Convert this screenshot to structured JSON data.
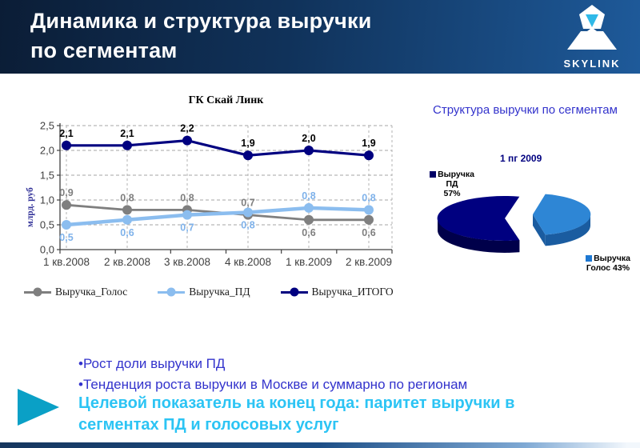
{
  "header": {
    "title_lines": [
      "Динамика и структура выручки",
      "по сегментам"
    ],
    "logo_text": "SKYLINK"
  },
  "chart_data": [
    {
      "type": "line",
      "title": "ГК Скай Линк",
      "ylabel": "млрд. руб",
      "ylim": [
        0,
        2.5
      ],
      "yticks": [
        "0,0",
        "0,5",
        "1,0",
        "1,5",
        "2,0",
        "2,5"
      ],
      "grid": true,
      "legend_position": "bottom",
      "categories": [
        "1 кв.2008",
        "2 кв.2008",
        "3 кв.2008",
        "4 кв.2008",
        "1 кв.2009",
        "2 кв.2009"
      ],
      "series": [
        {
          "name": "Выручка_Голос",
          "color": "#7F7F7F",
          "values": [
            0.9,
            0.8,
            0.8,
            0.7,
            0.6,
            0.6
          ],
          "labels": [
            "0,9",
            "0,8",
            "0,8",
            "0,7",
            "0,6",
            "0,6"
          ],
          "label_side": [
            "above",
            "above",
            "above",
            "above",
            "below",
            "below"
          ]
        },
        {
          "name": "Выручка_ПД",
          "color": "#8BBDEF",
          "label_color": "#7FB2EA",
          "values": [
            0.5,
            0.6,
            0.7,
            0.75,
            0.84,
            0.8
          ],
          "labels": [
            "0,5",
            "0,6",
            "0,7",
            "0,8",
            "0,8",
            "0,8"
          ],
          "label_side": [
            "below",
            "below",
            "below",
            "below",
            "above",
            "above"
          ]
        },
        {
          "name": "Выручка_ИТОГО",
          "color": "#000080",
          "label_color": "#000000",
          "values": [
            2.1,
            2.1,
            2.2,
            1.9,
            2.0,
            1.9
          ],
          "labels": [
            "2,1",
            "2,1",
            "2,2",
            "1,9",
            "2,0",
            "1,9"
          ],
          "label_side": [
            "above",
            "above",
            "above",
            "above",
            "above",
            "above"
          ]
        }
      ]
    },
    {
      "type": "pie",
      "title": "Структура выручки по сегментам",
      "subtitle": "1 пг 2009",
      "slices": [
        {
          "name": "Выручка ПД",
          "pct": 57,
          "color": "#000080",
          "side_color": "#00004A",
          "legend_color": "#000066",
          "legend_lines": [
            "Выручка",
            "ПД",
            "57%"
          ]
        },
        {
          "name": "Выручка Голос",
          "pct": 43,
          "color": "#2E86D5",
          "side_color": "#1A5CA0",
          "legend_color": "#1E78D2",
          "legend_lines": [
            "Выручка",
            "Голос 43%"
          ]
        }
      ]
    }
  ],
  "bullets": [
    "•Рост доли выручки ПД",
    "•Тенденция роста выручки в Москве и суммарно по регионам"
  ],
  "highlight_lines": [
    "Целевой показатель на конец года: паритет выручки в",
    "сегментах ПД и голосовых услуг"
  ],
  "colors": {
    "bullet_text": "#3333CC",
    "highlight_text": "#2CC4F4",
    "arrow": "#0AA0C6",
    "header_left": "#0B1D36",
    "header_right": "#1E5A9A"
  }
}
